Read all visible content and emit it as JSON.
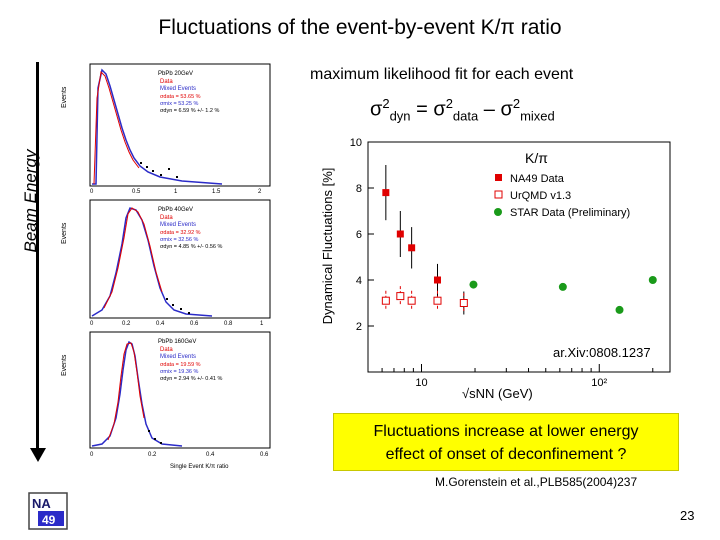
{
  "slide": {
    "title": "Fluctuations of the event-by-event  K/π  ratio",
    "subtitle": "maximum likelihood fit for each event",
    "formula": {
      "sigma": "σ",
      "sup": "2",
      "dyn": "dyn",
      "eq": " = ",
      "data": "data",
      "minus": " – ",
      "mixed": "mixed"
    },
    "beam_energy_label": "Beam Energy",
    "callout_line1": "Fluctuations increase at lower energy",
    "callout_line2": "effect of onset of deconfinement ?",
    "reference": "M.Gorenstein et al.,PLB585(2004)237",
    "arxiv": "ar.Xiv:0808.1237",
    "page_number": "23",
    "logo_text": "NA49",
    "colors": {
      "accent": "#ffff00",
      "na49": "#e00000",
      "star": "#1a9a1a",
      "mixed": "#2b2bc8"
    }
  },
  "histograms": [
    {
      "header": "PbPb 20GeV",
      "legend": [
        "Data",
        "Mixed Events"
      ],
      "stats": [
        "σdata = 53.65 %",
        "σmix = 53.25 %",
        "σdyn = 6.59 % +/- 1.2 %"
      ],
      "xticks": [
        "0",
        "0.5",
        "1",
        "1.5",
        "2"
      ],
      "ylabel": "Events"
    },
    {
      "header": "PbPb 40GeV",
      "legend": [
        "Data",
        "Mixed Events"
      ],
      "stats": [
        "σdata = 32.92 %",
        "σmix = 32.56 %",
        "σdyn = 4.85 % +/- 0.56 %"
      ],
      "xticks": [
        "0",
        "0.2",
        "0.4",
        "0.6",
        "0.8",
        "1"
      ],
      "ylabel": "Events"
    },
    {
      "header": "PbPb 160GeV",
      "legend": [
        "Data",
        "Mixed Events"
      ],
      "stats": [
        "σdata = 19.59 %",
        "σmix = 19.36 %",
        "σdyn = 2.94 % +/- 0.41 %"
      ],
      "xticks": [
        "0",
        "0.2",
        "0.4",
        "0.6"
      ],
      "ylabel": "Events",
      "xlabel": "Single Event K/π ratio"
    }
  ],
  "chart_data": {
    "type": "scatter",
    "title": "K/π",
    "ylabel": "Dynamical Fluctuations [%]",
    "xlabel": "√sNN (GeV)",
    "xscale": "log",
    "xlim": [
      5,
      250
    ],
    "ylim": [
      0,
      10
    ],
    "yticks": [
      2,
      4,
      6,
      8,
      10
    ],
    "xticks": [
      {
        "value": 10,
        "label": "10"
      },
      {
        "value": 100,
        "label": "10²"
      }
    ],
    "legend": [
      "NA49 Data",
      "UrQMD v1.3",
      "STAR Data (Preliminary)"
    ],
    "series": [
      {
        "name": "NA49 Data",
        "marker": "filled-square",
        "color": "#e00000",
        "x": [
          6.3,
          7.6,
          8.8,
          12.3,
          17.3
        ],
        "y": [
          7.8,
          6.0,
          5.4,
          4.0,
          3.0
        ],
        "yerr": [
          1.2,
          1.0,
          0.9,
          0.7,
          0.5
        ]
      },
      {
        "name": "UrQMD v1.3",
        "marker": "open-square",
        "color": "#e00000",
        "x": [
          6.3,
          7.6,
          8.8,
          12.3,
          17.3
        ],
        "y": [
          3.1,
          3.3,
          3.1,
          3.1,
          3.0
        ]
      },
      {
        "name": "STAR Data (Preliminary)",
        "marker": "filled-circle",
        "color": "#1a9a1a",
        "x": [
          19.6,
          62.4,
          130,
          200
        ],
        "y": [
          3.8,
          3.7,
          2.7,
          4.0
        ]
      }
    ]
  }
}
